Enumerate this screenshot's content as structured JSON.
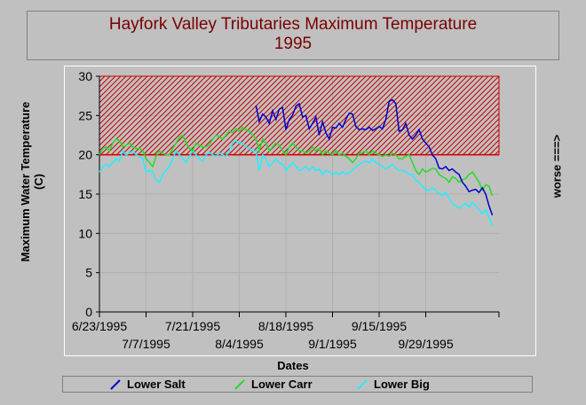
{
  "title_line1": "Hayfork Valley Tributaries Maximum Temperature",
  "title_line2": "1995",
  "ylabel_line1": "Maximum Water Temperature",
  "ylabel_line2": "(C)",
  "xlabel": "Dates",
  "right_label": "worse ===>",
  "colors": {
    "Lower Salt": "#0000cc",
    "Lower Carr": "#22dd22",
    "Lower Big": "#22eeff",
    "band": "#cc0000",
    "title": "#7a0000"
  },
  "chart_data": {
    "type": "line",
    "title": "Hayfork Valley Tributaries Maximum Temperature 1995",
    "xlabel": "Dates",
    "ylabel": "Maximum Water Temperature (C)",
    "ylim": [
      0,
      30
    ],
    "yticks": [
      0,
      5,
      10,
      15,
      20,
      25,
      30
    ],
    "xlim": [
      "6/23/1995",
      "10/21/1995"
    ],
    "xticks": [
      "6/23/1995",
      "7/7/1995",
      "7/21/1995",
      "8/4/1995",
      "8/18/1995",
      "9/1/1995",
      "9/15/1995",
      "9/29/1995"
    ],
    "threshold_band": {
      "from": 20,
      "to": 30,
      "pattern": "hatched"
    },
    "legend_position": "bottom",
    "series": [
      {
        "name": "Lower Salt",
        "x": [
          "8/9/1995",
          "8/10/1995",
          "8/11/1995",
          "8/12/1995",
          "8/13/1995",
          "8/14/1995",
          "8/15/1995",
          "8/16/1995",
          "8/17/1995",
          "8/18/1995",
          "8/19/1995",
          "8/20/1995",
          "8/21/1995",
          "8/22/1995",
          "8/23/1995",
          "8/24/1995",
          "8/25/1995",
          "8/26/1995",
          "8/27/1995",
          "8/28/1995",
          "8/29/1995",
          "8/30/1995",
          "8/31/1995",
          "9/1/1995",
          "9/2/1995",
          "9/3/1995",
          "9/4/1995",
          "9/5/1995",
          "9/6/1995",
          "9/7/1995",
          "9/8/1995",
          "9/9/1995",
          "9/10/1995",
          "9/11/1995",
          "9/12/1995",
          "9/13/1995",
          "9/14/1995",
          "9/15/1995",
          "9/16/1995",
          "9/17/1995",
          "9/18/1995",
          "9/19/1995",
          "9/20/1995",
          "9/21/1995",
          "9/22/1995",
          "9/23/1995",
          "9/24/1995",
          "9/25/1995",
          "9/26/1995",
          "9/27/1995",
          "9/28/1995",
          "9/29/1995",
          "9/30/1995",
          "10/1/1995",
          "10/2/1995",
          "10/3/1995",
          "10/4/1995",
          "10/5/1995",
          "10/6/1995",
          "10/7/1995",
          "10/8/1995",
          "10/9/1995",
          "10/10/1995",
          "10/11/1995",
          "10/12/1995",
          "10/13/1995",
          "10/14/1995",
          "10/15/1995",
          "10/16/1995",
          "10/17/1995",
          "10/18/1995",
          "10/19/1995"
        ],
        "values": [
          26.3,
          24.2,
          25.2,
          24.8,
          24.0,
          25.6,
          24.5,
          25.8,
          26.0,
          23.2,
          24.5,
          25.0,
          26.2,
          26.5,
          24.8,
          25.0,
          23.3,
          24.0,
          24.8,
          22.5,
          24.2,
          22.8,
          22.0,
          23.5,
          23.4,
          24.0,
          23.5,
          24.5,
          25.3,
          25.2,
          23.6,
          23.2,
          23.3,
          23.2,
          23.5,
          23.1,
          23.3,
          23.6,
          23.3,
          24.5,
          26.8,
          27.0,
          26.5,
          23.0,
          23.2,
          24.0,
          22.5,
          22.0,
          22.5,
          23.2,
          22.0,
          21.5,
          21.0,
          20.0,
          19.5,
          18.3,
          18.2,
          18.5,
          18.0,
          18.2,
          17.8,
          17.5,
          16.5,
          16.0,
          15.3,
          15.5,
          15.6,
          15.2,
          15.8,
          15.0,
          13.5,
          12.3
        ]
      },
      {
        "name": "Lower Carr",
        "x": [
          "6/23/1995",
          "6/24/1995",
          "6/25/1995",
          "6/26/1995",
          "6/27/1995",
          "6/28/1995",
          "6/29/1995",
          "6/30/1995",
          "7/1/1995",
          "7/2/1995",
          "7/3/1995",
          "7/4/1995",
          "7/5/1995",
          "7/6/1995",
          "7/7/1995",
          "7/8/1995",
          "7/9/1995",
          "7/10/1995",
          "7/11/1995",
          "7/12/1995",
          "7/13/1995",
          "7/14/1995",
          "7/15/1995",
          "7/16/1995",
          "7/17/1995",
          "7/18/1995",
          "7/19/1995",
          "7/20/1995",
          "7/21/1995",
          "7/22/1995",
          "7/23/1995",
          "7/24/1995",
          "7/25/1995",
          "7/26/1995",
          "7/27/1995",
          "7/28/1995",
          "7/29/1995",
          "7/30/1995",
          "7/31/1995",
          "8/1/1995",
          "8/2/1995",
          "8/3/1995",
          "8/4/1995",
          "8/5/1995",
          "8/6/1995",
          "8/7/1995",
          "8/8/1995",
          "8/9/1995",
          "8/10/1995",
          "8/11/1995",
          "8/12/1995",
          "8/13/1995",
          "8/14/1995",
          "8/15/1995",
          "8/16/1995",
          "8/17/1995",
          "8/18/1995",
          "8/19/1995",
          "8/20/1995",
          "8/21/1995",
          "8/22/1995",
          "8/23/1995",
          "8/24/1995",
          "8/25/1995",
          "8/26/1995",
          "8/27/1995",
          "8/28/1995",
          "8/29/1995",
          "8/30/1995",
          "8/31/1995",
          "9/1/1995",
          "9/2/1995",
          "9/3/1995",
          "9/4/1995",
          "9/5/1995",
          "9/6/1995",
          "9/7/1995",
          "9/8/1995",
          "9/9/1995",
          "9/10/1995",
          "9/11/1995",
          "9/12/1995",
          "9/13/1995",
          "9/14/1995",
          "9/15/1995",
          "9/16/1995",
          "9/17/1995",
          "9/18/1995",
          "9/19/1995",
          "9/20/1995",
          "9/21/1995",
          "9/22/1995",
          "9/23/1995",
          "9/24/1995",
          "9/25/1995",
          "9/26/1995",
          "9/27/1995",
          "9/28/1995",
          "9/29/1995",
          "9/30/1995",
          "10/1/1995",
          "10/2/1995",
          "10/3/1995",
          "10/4/1995",
          "10/5/1995",
          "10/6/1995",
          "10/7/1995",
          "10/8/1995",
          "10/9/1995",
          "10/10/1995",
          "10/11/1995",
          "10/12/1995",
          "10/13/1995",
          "10/14/1995",
          "10/15/1995",
          "10/16/1995",
          "10/17/1995",
          "10/18/1995",
          "10/19/1995"
        ],
        "values": [
          20.0,
          20.8,
          21.0,
          20.5,
          21.5,
          22.0,
          21.8,
          21.0,
          21.2,
          21.5,
          21.0,
          20.8,
          20.8,
          20.5,
          19.5,
          19.0,
          18.5,
          19.8,
          20.5,
          20.2,
          20.0,
          20.0,
          20.8,
          21.5,
          22.2,
          22.5,
          21.5,
          20.8,
          20.5,
          21.5,
          21.2,
          21.0,
          21.0,
          21.3,
          22.0,
          22.5,
          22.3,
          22.0,
          22.5,
          23.0,
          22.8,
          23.3,
          23.0,
          23.5,
          23.2,
          23.0,
          22.5,
          22.0,
          20.5,
          22.0,
          21.5,
          20.5,
          21.0,
          21.5,
          21.2,
          20.5,
          20.0,
          21.0,
          21.5,
          21.0,
          20.5,
          20.5,
          20.2,
          20.5,
          21.0,
          20.5,
          20.8,
          20.0,
          20.5,
          20.2,
          20.0,
          20.5,
          20.0,
          20.2,
          19.8,
          19.5,
          19.0,
          19.5,
          20.2,
          20.3,
          20.5,
          20.0,
          20.5,
          20.2,
          20.0,
          19.8,
          20.0,
          19.8,
          20.2,
          20.0,
          19.5,
          19.5,
          19.8,
          20.0,
          19.0,
          18.0,
          17.5,
          18.2,
          17.8,
          18.0,
          18.3,
          18.2,
          17.5,
          17.2,
          17.0,
          16.5,
          17.2,
          17.0,
          16.5,
          16.8,
          17.0,
          17.5,
          17.8,
          17.2,
          16.5,
          15.5,
          16.2,
          16.0,
          14.8
        ]
      },
      {
        "name": "Lower Big",
        "x": [
          "6/23/1995",
          "6/24/1995",
          "6/25/1995",
          "6/26/1995",
          "6/27/1995",
          "6/28/1995",
          "6/29/1995",
          "6/30/1995",
          "7/1/1995",
          "7/2/1995",
          "7/3/1995",
          "7/4/1995",
          "7/5/1995",
          "7/6/1995",
          "7/7/1995",
          "7/8/1995",
          "7/9/1995",
          "7/10/1995",
          "7/11/1995",
          "7/12/1995",
          "7/13/1995",
          "7/14/1995",
          "7/15/1995",
          "7/16/1995",
          "7/17/1995",
          "7/18/1995",
          "7/19/1995",
          "7/20/1995",
          "7/21/1995",
          "7/22/1995",
          "7/23/1995",
          "7/24/1995",
          "7/25/1995",
          "7/26/1995",
          "7/27/1995",
          "7/28/1995",
          "7/29/1995",
          "7/30/1995",
          "7/31/1995",
          "8/1/1995",
          "8/2/1995",
          "8/3/1995",
          "8/4/1995",
          "8/5/1995",
          "8/6/1995",
          "8/7/1995",
          "8/8/1995",
          "8/9/1995",
          "8/10/1995",
          "8/11/1995",
          "8/12/1995",
          "8/13/1995",
          "8/14/1995",
          "8/15/1995",
          "8/16/1995",
          "8/17/1995",
          "8/18/1995",
          "8/19/1995",
          "8/20/1995",
          "8/21/1995",
          "8/22/1995",
          "8/23/1995",
          "8/24/1995",
          "8/25/1995",
          "8/26/1995",
          "8/27/1995",
          "8/28/1995",
          "8/29/1995",
          "8/30/1995",
          "8/31/1995",
          "9/1/1995",
          "9/2/1995",
          "9/3/1995",
          "9/4/1995",
          "9/5/1995",
          "9/6/1995",
          "9/7/1995",
          "9/8/1995",
          "9/9/1995",
          "9/10/1995",
          "9/11/1995",
          "9/12/1995",
          "9/13/1995",
          "9/14/1995",
          "9/15/1995",
          "9/16/1995",
          "9/17/1995",
          "9/18/1995",
          "9/19/1995",
          "9/20/1995",
          "9/21/1995",
          "9/22/1995",
          "9/23/1995",
          "9/24/1995",
          "9/25/1995",
          "9/26/1995",
          "9/27/1995",
          "9/28/1995",
          "9/29/1995",
          "9/30/1995",
          "10/1/1995",
          "10/2/1995",
          "10/3/1995",
          "10/4/1995",
          "10/5/1995",
          "10/6/1995",
          "10/7/1995",
          "10/8/1995",
          "10/9/1995",
          "10/10/1995",
          "10/11/1995",
          "10/12/1995",
          "10/13/1995",
          "10/14/1995",
          "10/15/1995",
          "10/16/1995",
          "10/17/1995",
          "10/18/1995",
          "10/19/1995"
        ],
        "values": [
          17.8,
          18.5,
          18.8,
          18.5,
          19.0,
          19.5,
          19.2,
          20.5,
          20.0,
          20.2,
          20.5,
          20.0,
          19.8,
          19.5,
          17.8,
          18.0,
          17.8,
          16.8,
          16.5,
          17.5,
          18.0,
          18.5,
          19.5,
          20.5,
          20.0,
          19.5,
          19.0,
          19.8,
          20.5,
          20.0,
          19.5,
          19.2,
          20.0,
          20.3,
          20.0,
          19.8,
          20.2,
          20.0,
          19.8,
          20.5,
          21.5,
          21.8,
          21.5,
          21.5,
          21.0,
          20.8,
          20.5,
          20.5,
          18.0,
          20.0,
          19.5,
          18.5,
          19.0,
          19.5,
          19.0,
          18.8,
          18.0,
          18.5,
          19.0,
          18.5,
          18.0,
          18.2,
          18.5,
          18.0,
          18.5,
          18.0,
          18.2,
          17.5,
          18.0,
          17.8,
          17.5,
          17.8,
          17.5,
          17.8,
          17.5,
          17.8,
          18.0,
          18.5,
          18.8,
          19.0,
          19.2,
          19.0,
          19.5,
          19.0,
          18.8,
          18.5,
          18.2,
          18.5,
          18.8,
          18.3,
          18.0,
          18.0,
          17.8,
          17.5,
          17.5,
          16.8,
          16.5,
          16.0,
          15.5,
          15.5,
          15.8,
          15.5,
          15.0,
          14.8,
          15.2,
          14.5,
          13.8,
          13.5,
          13.2,
          13.5,
          13.8,
          13.3,
          14.0,
          13.5,
          13.0,
          12.5,
          13.0,
          12.0,
          11.0
        ]
      }
    ]
  },
  "legend": [
    {
      "label": "Lower Salt",
      "color": "#0000cc"
    },
    {
      "label": "Lower Carr",
      "color": "#22dd22"
    },
    {
      "label": "Lower Big",
      "color": "#22eeff"
    }
  ]
}
